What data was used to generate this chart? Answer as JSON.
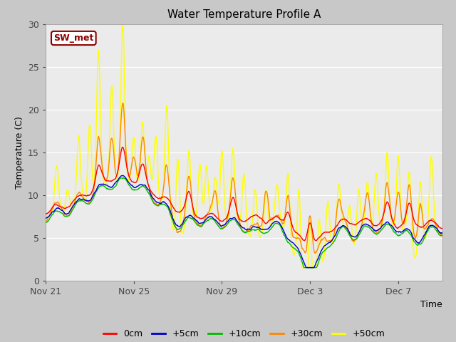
{
  "title": "Water Temperature Profile A",
  "xlabel": "Time",
  "ylabel": "Temperature (C)",
  "ylim": [
    0,
    30
  ],
  "fig_bg_color": "#c8c8c8",
  "plot_bg_color": "#ebebeb",
  "annotation_text": "SW_met",
  "annotation_bg": "#ffffff",
  "annotation_border": "#8b0000",
  "annotation_text_color": "#8b0000",
  "series_colors": {
    "0cm": "#ff0000",
    "+5cm": "#0000cc",
    "+10cm": "#00bb00",
    "+30cm": "#ff8800",
    "+50cm": "#ffff00"
  },
  "tick_labels": [
    "Nov 21",
    "Nov 25",
    "Nov 29",
    "Dec 3",
    "Dec 7"
  ],
  "yticks": [
    0,
    5,
    10,
    15,
    20,
    25,
    30
  ],
  "xlim": [
    0,
    18
  ],
  "tick_positions": [
    0,
    4,
    8,
    12,
    16
  ]
}
